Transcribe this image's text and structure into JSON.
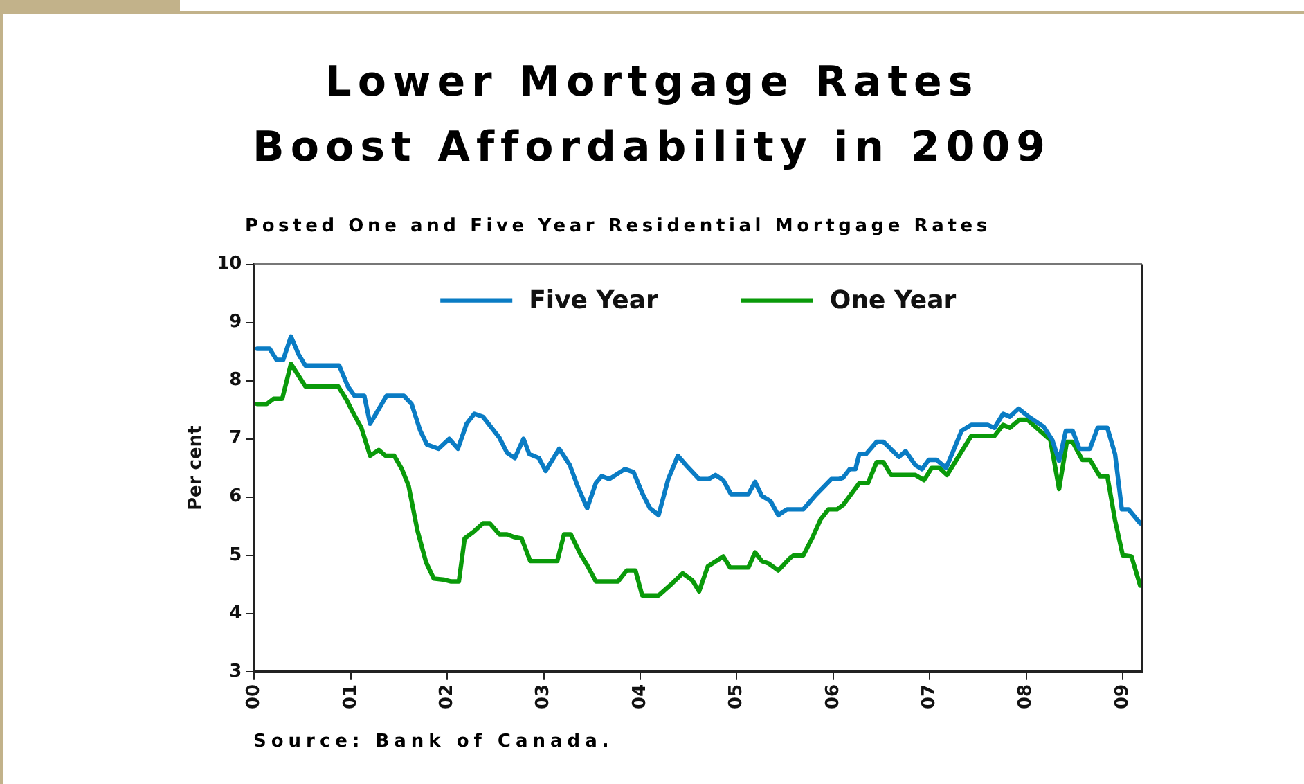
{
  "chart_data": {
    "type": "line",
    "title": "Lower Mortgage Rates\nBoost Affordability in 2009",
    "subtitle": "Posted One and Five Year Residential Mortgage Rates",
    "ylabel": "Per cent",
    "annotations": [
      "Source:  Bank of Canada."
    ],
    "legend": "top",
    "marker": "none",
    "line_style": "solid",
    "xlim": [
      2000,
      2009.2
    ],
    "xticks": [
      {
        "value": 2000,
        "label": "00"
      },
      {
        "value": 2001,
        "label": "01"
      },
      {
        "value": 2002,
        "label": "02"
      },
      {
        "value": 2003,
        "label": "03"
      },
      {
        "value": 2004,
        "label": "04"
      },
      {
        "value": 2005,
        "label": "05"
      },
      {
        "value": 2006,
        "label": "06"
      },
      {
        "value": 2007,
        "label": "07"
      },
      {
        "value": 2008,
        "label": "08"
      },
      {
        "value": 2009,
        "label": "09"
      }
    ],
    "ylim": [
      3,
      10
    ],
    "yticks": [
      3,
      4,
      5,
      6,
      7,
      8,
      9,
      10
    ],
    "series": [
      {
        "name": "Five Year",
        "color": "#0a7cc4",
        "x": [
          2000.03,
          2000.16,
          2000.23,
          2000.3,
          2000.38,
          2000.46,
          2000.53,
          2000.88,
          2000.97,
          2001.04,
          2001.14,
          2001.2,
          2001.37,
          2001.55,
          2001.63,
          2001.72,
          2001.79,
          2001.91,
          2002.02,
          2002.11,
          2002.2,
          2002.28,
          2002.37,
          2002.54,
          2002.62,
          2002.7,
          2002.79,
          2002.85,
          2002.95,
          2003.02,
          2003.16,
          2003.27,
          2003.35,
          2003.45,
          2003.54,
          2003.6,
          2003.68,
          2003.84,
          2003.93,
          2004.02,
          2004.1,
          2004.19,
          2004.29,
          2004.39,
          2004.49,
          2004.61,
          2004.71,
          2004.78,
          2004.86,
          2004.94,
          2005.12,
          2005.19,
          2005.26,
          2005.35,
          2005.43,
          2005.52,
          2005.69,
          2005.81,
          2005.98,
          2006.06,
          2006.1,
          2006.17,
          2006.23,
          2006.27,
          2006.34,
          2006.45,
          2006.52,
          2006.68,
          2006.75,
          2006.85,
          2006.92,
          2006.99,
          2007.07,
          2007.17,
          2007.33,
          2007.43,
          2007.6,
          2007.67,
          2007.76,
          2007.83,
          2007.92,
          2008.01,
          2008.18,
          2008.27,
          2008.34,
          2008.41,
          2008.48,
          2008.55,
          2008.66,
          2008.74,
          2008.84,
          2008.92,
          2008.99,
          2009.06,
          2009.18
        ],
        "values": [
          8.55,
          8.55,
          8.36,
          8.36,
          8.76,
          8.45,
          8.26,
          8.26,
          7.9,
          7.74,
          7.74,
          7.26,
          7.74,
          7.74,
          7.6,
          7.14,
          6.9,
          6.83,
          7.0,
          6.83,
          7.26,
          7.43,
          7.38,
          7.02,
          6.76,
          6.67,
          7.0,
          6.74,
          6.67,
          6.45,
          6.83,
          6.55,
          6.19,
          5.81,
          6.24,
          6.36,
          6.31,
          6.48,
          6.43,
          6.07,
          5.81,
          5.69,
          6.31,
          6.71,
          6.52,
          6.31,
          6.31,
          6.38,
          6.29,
          6.05,
          6.05,
          6.26,
          6.02,
          5.93,
          5.69,
          5.79,
          5.79,
          6.02,
          6.31,
          6.31,
          6.33,
          6.48,
          6.48,
          6.74,
          6.74,
          6.95,
          6.95,
          6.69,
          6.79,
          6.55,
          6.48,
          6.64,
          6.64,
          6.5,
          7.14,
          7.24,
          7.24,
          7.19,
          7.43,
          7.38,
          7.52,
          7.4,
          7.21,
          6.98,
          6.62,
          7.14,
          7.14,
          6.83,
          6.83,
          7.19,
          7.19,
          6.74,
          5.79,
          5.79,
          5.55
        ]
      },
      {
        "name": "One Year",
        "color": "#0a9a0a",
        "x": [
          2000.03,
          2000.13,
          2000.2,
          2000.29,
          2000.38,
          2000.53,
          2000.87,
          2000.95,
          2001.03,
          2001.11,
          2001.2,
          2001.29,
          2001.36,
          2001.45,
          2001.53,
          2001.6,
          2001.69,
          2001.78,
          2001.86,
          2001.97,
          2002.04,
          2002.12,
          2002.18,
          2002.27,
          2002.37,
          2002.44,
          2002.54,
          2002.62,
          2002.7,
          2002.77,
          2002.86,
          2003.06,
          2003.14,
          2003.21,
          2003.28,
          2003.38,
          2003.45,
          2003.54,
          2003.77,
          2003.86,
          2003.95,
          2004.02,
          2004.19,
          2004.32,
          2004.44,
          2004.54,
          2004.61,
          2004.7,
          2004.86,
          2004.93,
          2005.12,
          2005.19,
          2005.26,
          2005.33,
          2005.43,
          2005.55,
          2005.59,
          2005.69,
          2005.78,
          2005.87,
          2005.95,
          2006.04,
          2006.1,
          2006.27,
          2006.36,
          2006.45,
          2006.52,
          2006.6,
          2006.85,
          2006.94,
          2007.02,
          2007.1,
          2007.18,
          2007.43,
          2007.67,
          2007.76,
          2007.83,
          2007.93,
          2008.01,
          2008.25,
          2008.34,
          2008.42,
          2008.48,
          2008.58,
          2008.66,
          2008.76,
          2008.84,
          2008.92,
          2009.0,
          2009.09,
          2009.18
        ],
        "values": [
          7.6,
          7.6,
          7.69,
          7.69,
          8.29,
          7.9,
          7.9,
          7.69,
          7.43,
          7.19,
          6.71,
          6.81,
          6.71,
          6.71,
          6.48,
          6.19,
          5.43,
          4.88,
          4.6,
          4.58,
          4.55,
          4.55,
          5.29,
          5.4,
          5.55,
          5.55,
          5.36,
          5.36,
          5.31,
          5.29,
          4.9,
          4.9,
          4.9,
          5.36,
          5.36,
          5.02,
          4.83,
          4.55,
          4.55,
          4.74,
          4.74,
          4.31,
          4.31,
          4.5,
          4.69,
          4.57,
          4.38,
          4.81,
          4.98,
          4.79,
          4.79,
          5.05,
          4.9,
          4.86,
          4.74,
          4.95,
          5.0,
          5.0,
          5.29,
          5.62,
          5.79,
          5.79,
          5.86,
          6.24,
          6.24,
          6.6,
          6.6,
          6.38,
          6.38,
          6.29,
          6.5,
          6.5,
          6.38,
          7.05,
          7.05,
          7.24,
          7.19,
          7.33,
          7.33,
          6.98,
          6.14,
          6.95,
          6.95,
          6.64,
          6.64,
          6.36,
          6.36,
          5.6,
          5.0,
          4.98,
          4.48
        ]
      }
    ]
  }
}
